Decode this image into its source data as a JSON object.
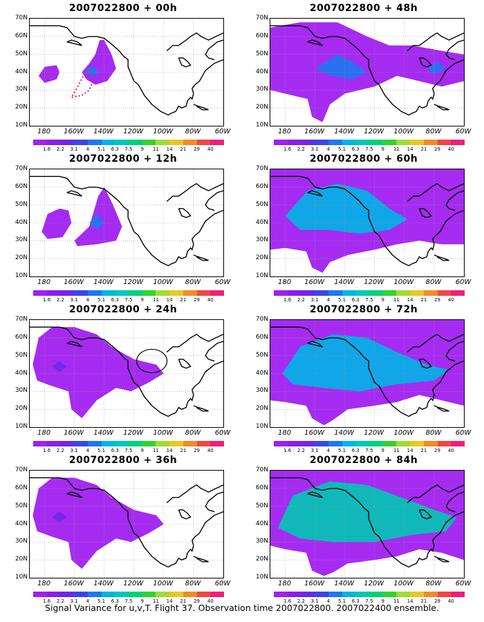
{
  "panels": [
    {
      "title": "2007022800 + 00h",
      "level": 0
    },
    {
      "title": "2007022800 + 48h",
      "level": 3
    },
    {
      "title": "2007022800 + 12h",
      "level": 1
    },
    {
      "title": "2007022800 + 60h",
      "level": 4
    },
    {
      "title": "2007022800 + 24h",
      "level": 2
    },
    {
      "title": "2007022800 + 72h",
      "level": 5
    },
    {
      "title": "2007022800 + 36h",
      "level": 2
    },
    {
      "title": "2007022800 + 84h",
      "level": 6
    }
  ],
  "lat_labels": [
    "70N",
    "60N",
    "50N",
    "40N",
    "30N",
    "20N",
    "10N"
  ],
  "lon_labels": [
    "180",
    "160W",
    "140W",
    "120W",
    "100W",
    "80W",
    "60W"
  ],
  "colorbar": {
    "labels": [
      "1.6",
      "2.2",
      "3.1",
      "4",
      "5.1",
      "6.3",
      "7.5",
      "9",
      "11",
      "14",
      "21",
      "29",
      "40"
    ],
    "colors": [
      "#a020f0",
      "#8c1ee6",
      "#6e28e6",
      "#3c46e6",
      "#1e78f0",
      "#00b4e6",
      "#00c8b4",
      "#00d278",
      "#32d232",
      "#a0dc32",
      "#e6c828",
      "#f08c28",
      "#f04646",
      "#f01e78"
    ]
  },
  "caption": "Signal Variance for u,v,T. Flight 37. Observation time 2007022800. 2007022400 ensemble."
}
